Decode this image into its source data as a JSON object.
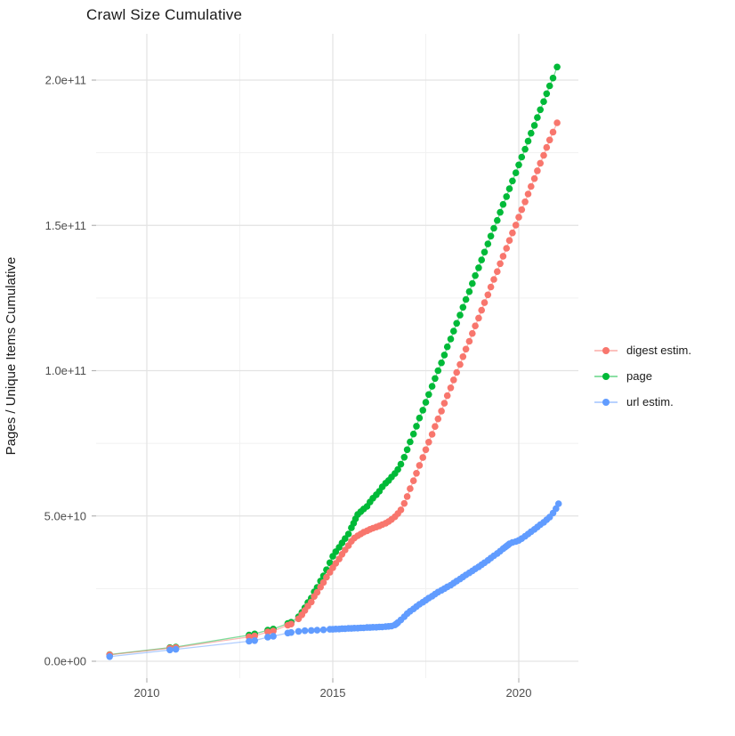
{
  "title": "Crawl Size Cumulative",
  "y_axis_title": "Pages / Unique Items Cumulative",
  "legend": {
    "position": "right",
    "items": [
      {
        "label": "digest estim.",
        "color": "#F8766D"
      },
      {
        "label": "page",
        "color": "#00BA38"
      },
      {
        "label": "url estim.",
        "color": "#619CFF"
      }
    ]
  },
  "colors": {
    "background": "#ffffff",
    "grid_major": "#e3e3e3",
    "grid_minor": "#f1f1f1",
    "tick_mark": "#b3b3b3",
    "axis_text": "#4d4d4d",
    "title_text": "#1a1a1a"
  },
  "chart_data": {
    "type": "scatter",
    "title": "Crawl Size Cumulative",
    "xlabel": "",
    "ylabel": "Pages / Unique Items Cumulative",
    "value_unit": "items, value stored in units of 1e9 (giga)",
    "x_ticks": [
      {
        "label": "2010",
        "year": 2010
      },
      {
        "label": "2015",
        "year": 2015
      },
      {
        "label": "2020",
        "year": 2020
      }
    ],
    "y_ticks": [
      {
        "label": "0.0e+00",
        "value_e9": 0
      },
      {
        "label": "5.0e+10",
        "value_e9": 50
      },
      {
        "label": "1.0e+11",
        "value_e9": 100
      },
      {
        "label": "1.5e+11",
        "value_e9": 150
      },
      {
        "label": "2.0e+11",
        "value_e9": 200
      }
    ],
    "x_minor_ticks_years": [
      2012.5,
      2017.5
    ],
    "y_minor_ticks_e9": [
      25,
      75,
      125,
      175
    ],
    "x_range_years": [
      2008.64,
      2021.6
    ],
    "y_range_e9": [
      -5.8,
      216
    ],
    "grid": "major+minor",
    "legend_position": "right",
    "draw_order": [
      1,
      0,
      2
    ],
    "series": [
      {
        "name": "digest estim.",
        "color": "#F8766D",
        "points": [
          [
            2009.0,
            2.2
          ],
          [
            2010.62,
            4.5
          ],
          [
            2010.78,
            4.7
          ],
          [
            2012.75,
            8.4
          ],
          [
            2012.9,
            8.7
          ],
          [
            2013.25,
            10.1
          ],
          [
            2013.4,
            10.4
          ],
          [
            2013.79,
            12.4
          ],
          [
            2013.88,
            12.8
          ],
          [
            2014.08,
            14.6
          ],
          [
            2014.17,
            16.0
          ],
          [
            2014.25,
            17.5
          ],
          [
            2014.33,
            19.0
          ],
          [
            2014.42,
            20.4
          ],
          [
            2014.5,
            22.3
          ],
          [
            2014.58,
            23.7
          ],
          [
            2014.67,
            25.5
          ],
          [
            2014.75,
            27.1
          ],
          [
            2014.83,
            28.9
          ],
          [
            2014.92,
            30.6
          ],
          [
            2015.0,
            32.2
          ],
          [
            2015.08,
            33.7
          ],
          [
            2015.17,
            35.2
          ],
          [
            2015.25,
            36.8
          ],
          [
            2015.33,
            38.3
          ],
          [
            2015.42,
            39.8
          ],
          [
            2015.5,
            41.3
          ],
          [
            2015.58,
            42.4
          ],
          [
            2015.67,
            43.2
          ],
          [
            2015.75,
            43.8
          ],
          [
            2015.83,
            44.4
          ],
          [
            2015.92,
            44.9
          ],
          [
            2016.0,
            45.4
          ],
          [
            2016.08,
            45.8
          ],
          [
            2016.17,
            46.2
          ],
          [
            2016.25,
            46.6
          ],
          [
            2016.33,
            47.0
          ],
          [
            2016.42,
            47.5
          ],
          [
            2016.5,
            48.1
          ],
          [
            2016.58,
            48.8
          ],
          [
            2016.67,
            49.7
          ],
          [
            2016.75,
            50.8
          ],
          [
            2016.83,
            52.1
          ],
          [
            2016.92,
            54.3
          ],
          [
            2017.0,
            56.7
          ],
          [
            2017.08,
            59.4
          ],
          [
            2017.17,
            62.1
          ],
          [
            2017.25,
            64.7
          ],
          [
            2017.33,
            67.4
          ],
          [
            2017.42,
            70.1
          ],
          [
            2017.5,
            72.8
          ],
          [
            2017.58,
            75.4
          ],
          [
            2017.67,
            78.1
          ],
          [
            2017.75,
            80.8
          ],
          [
            2017.83,
            83.4
          ],
          [
            2017.92,
            86.1
          ],
          [
            2018.0,
            88.8
          ],
          [
            2018.08,
            91.4
          ],
          [
            2018.17,
            94.1
          ],
          [
            2018.25,
            96.8
          ],
          [
            2018.33,
            99.4
          ],
          [
            2018.42,
            102.1
          ],
          [
            2018.5,
            104.8
          ],
          [
            2018.58,
            107.4
          ],
          [
            2018.67,
            110.1
          ],
          [
            2018.75,
            112.8
          ],
          [
            2018.83,
            115.4
          ],
          [
            2018.92,
            118.1
          ],
          [
            2019.0,
            120.8
          ],
          [
            2019.08,
            123.4
          ],
          [
            2019.17,
            126.1
          ],
          [
            2019.25,
            128.8
          ],
          [
            2019.33,
            131.4
          ],
          [
            2019.42,
            134.1
          ],
          [
            2019.5,
            136.8
          ],
          [
            2019.58,
            139.4
          ],
          [
            2019.67,
            142.1
          ],
          [
            2019.75,
            144.8
          ],
          [
            2019.83,
            147.4
          ],
          [
            2019.92,
            150.1
          ],
          [
            2020.0,
            152.8
          ],
          [
            2020.08,
            155.4
          ],
          [
            2020.17,
            158.1
          ],
          [
            2020.25,
            160.8
          ],
          [
            2020.33,
            163.4
          ],
          [
            2020.42,
            166.1
          ],
          [
            2020.5,
            168.8
          ],
          [
            2020.58,
            171.4
          ],
          [
            2020.67,
            174.1
          ],
          [
            2020.75,
            176.8
          ],
          [
            2020.83,
            179.4
          ],
          [
            2020.92,
            182.1
          ],
          [
            2021.03,
            185.3
          ]
        ]
      },
      {
        "name": "page",
        "color": "#00BA38",
        "points": [
          [
            2009.0,
            2.3
          ],
          [
            2010.62,
            4.7
          ],
          [
            2010.78,
            4.9
          ],
          [
            2012.75,
            9.0
          ],
          [
            2012.9,
            9.4
          ],
          [
            2013.25,
            10.7
          ],
          [
            2013.4,
            11.1
          ],
          [
            2013.79,
            13.0
          ],
          [
            2013.88,
            13.4
          ],
          [
            2014.08,
            15.3
          ],
          [
            2014.17,
            16.8
          ],
          [
            2014.25,
            18.4
          ],
          [
            2014.33,
            20.2
          ],
          [
            2014.42,
            21.7
          ],
          [
            2014.5,
            23.9
          ],
          [
            2014.58,
            25.4
          ],
          [
            2014.67,
            27.6
          ],
          [
            2014.75,
            29.4
          ],
          [
            2014.83,
            31.5
          ],
          [
            2014.92,
            33.9
          ],
          [
            2015.0,
            36.1
          ],
          [
            2015.08,
            37.7
          ],
          [
            2015.17,
            39.2
          ],
          [
            2015.25,
            40.7
          ],
          [
            2015.33,
            42.2
          ],
          [
            2015.42,
            43.8
          ],
          [
            2015.5,
            45.9
          ],
          [
            2015.56,
            47.5
          ],
          [
            2015.61,
            49.0
          ],
          [
            2015.67,
            50.5
          ],
          [
            2015.75,
            51.5
          ],
          [
            2015.83,
            52.4
          ],
          [
            2015.92,
            53.3
          ],
          [
            2016.0,
            54.8
          ],
          [
            2016.08,
            56.1
          ],
          [
            2016.17,
            57.3
          ],
          [
            2016.25,
            58.5
          ],
          [
            2016.33,
            60.0
          ],
          [
            2016.42,
            61.3
          ],
          [
            2016.5,
            62.2
          ],
          [
            2016.58,
            63.4
          ],
          [
            2016.67,
            64.6
          ],
          [
            2016.75,
            66.0
          ],
          [
            2016.83,
            67.8
          ],
          [
            2016.92,
            70.2
          ],
          [
            2017.0,
            72.8
          ],
          [
            2017.08,
            75.5
          ],
          [
            2017.17,
            78.2
          ],
          [
            2017.25,
            80.9
          ],
          [
            2017.33,
            83.7
          ],
          [
            2017.42,
            86.4
          ],
          [
            2017.5,
            89.1
          ],
          [
            2017.58,
            91.8
          ],
          [
            2017.67,
            94.6
          ],
          [
            2017.75,
            97.3
          ],
          [
            2017.83,
            100.0
          ],
          [
            2017.92,
            102.7
          ],
          [
            2018.0,
            105.4
          ],
          [
            2018.08,
            108.2
          ],
          [
            2018.17,
            110.9
          ],
          [
            2018.25,
            113.6
          ],
          [
            2018.33,
            116.3
          ],
          [
            2018.42,
            119.1
          ],
          [
            2018.5,
            121.8
          ],
          [
            2018.58,
            124.5
          ],
          [
            2018.67,
            127.2
          ],
          [
            2018.75,
            130.0
          ],
          [
            2018.83,
            132.7
          ],
          [
            2018.92,
            135.4
          ],
          [
            2019.0,
            138.1
          ],
          [
            2019.08,
            140.8
          ],
          [
            2019.17,
            143.6
          ],
          [
            2019.25,
            146.3
          ],
          [
            2019.33,
            149.0
          ],
          [
            2019.42,
            151.7
          ],
          [
            2019.5,
            154.5
          ],
          [
            2019.58,
            157.2
          ],
          [
            2019.67,
            159.9
          ],
          [
            2019.75,
            162.6
          ],
          [
            2019.83,
            165.3
          ],
          [
            2019.92,
            168.1
          ],
          [
            2020.0,
            170.8
          ],
          [
            2020.08,
            173.5
          ],
          [
            2020.17,
            176.2
          ],
          [
            2020.25,
            179.0
          ],
          [
            2020.33,
            181.7
          ],
          [
            2020.42,
            184.4
          ],
          [
            2020.5,
            187.1
          ],
          [
            2020.58,
            189.8
          ],
          [
            2020.67,
            192.6
          ],
          [
            2020.75,
            195.3
          ],
          [
            2020.83,
            198.0
          ],
          [
            2020.92,
            200.7
          ],
          [
            2021.03,
            204.5
          ]
        ]
      },
      {
        "name": "url estim.",
        "color": "#619CFF",
        "points": [
          [
            2009.0,
            1.6
          ],
          [
            2010.62,
            3.9
          ],
          [
            2010.78,
            4.1
          ],
          [
            2012.75,
            6.9
          ],
          [
            2012.9,
            7.1
          ],
          [
            2013.25,
            8.3
          ],
          [
            2013.4,
            8.6
          ],
          [
            2013.79,
            9.7
          ],
          [
            2013.88,
            9.9
          ],
          [
            2014.08,
            10.3
          ],
          [
            2014.25,
            10.5
          ],
          [
            2014.42,
            10.6
          ],
          [
            2014.58,
            10.7
          ],
          [
            2014.75,
            10.8
          ],
          [
            2014.92,
            11.0
          ],
          [
            2015.0,
            11.0
          ],
          [
            2015.08,
            11.1
          ],
          [
            2015.17,
            11.1
          ],
          [
            2015.25,
            11.2
          ],
          [
            2015.33,
            11.2
          ],
          [
            2015.42,
            11.3
          ],
          [
            2015.5,
            11.3
          ],
          [
            2015.58,
            11.4
          ],
          [
            2015.67,
            11.4
          ],
          [
            2015.75,
            11.5
          ],
          [
            2015.83,
            11.5
          ],
          [
            2015.92,
            11.6
          ],
          [
            2016.0,
            11.6
          ],
          [
            2016.08,
            11.7
          ],
          [
            2016.17,
            11.7
          ],
          [
            2016.25,
            11.8
          ],
          [
            2016.33,
            11.8
          ],
          [
            2016.42,
            11.9
          ],
          [
            2016.5,
            12.0
          ],
          [
            2016.58,
            12.1
          ],
          [
            2016.67,
            12.5
          ],
          [
            2016.71,
            12.9
          ],
          [
            2016.75,
            13.3
          ],
          [
            2016.83,
            14.2
          ],
          [
            2016.92,
            15.3
          ],
          [
            2017.0,
            16.4
          ],
          [
            2017.08,
            17.2
          ],
          [
            2017.17,
            18.0
          ],
          [
            2017.25,
            18.8
          ],
          [
            2017.33,
            19.6
          ],
          [
            2017.42,
            20.3
          ],
          [
            2017.5,
            21.0
          ],
          [
            2017.58,
            21.7
          ],
          [
            2017.67,
            22.4
          ],
          [
            2017.75,
            23.1
          ],
          [
            2017.83,
            23.8
          ],
          [
            2017.92,
            24.4
          ],
          [
            2018.0,
            25.0
          ],
          [
            2018.08,
            25.6
          ],
          [
            2018.17,
            26.2
          ],
          [
            2018.25,
            26.9
          ],
          [
            2018.33,
            27.6
          ],
          [
            2018.42,
            28.3
          ],
          [
            2018.5,
            29.0
          ],
          [
            2018.58,
            29.7
          ],
          [
            2018.67,
            30.4
          ],
          [
            2018.75,
            31.1
          ],
          [
            2018.83,
            31.8
          ],
          [
            2018.92,
            32.5
          ],
          [
            2019.0,
            33.2
          ],
          [
            2019.08,
            33.9
          ],
          [
            2019.17,
            34.7
          ],
          [
            2019.25,
            35.5
          ],
          [
            2019.33,
            36.3
          ],
          [
            2019.42,
            37.1
          ],
          [
            2019.5,
            37.9
          ],
          [
            2019.58,
            38.7
          ],
          [
            2019.63,
            39.2
          ],
          [
            2019.67,
            39.6
          ],
          [
            2019.71,
            40.0
          ],
          [
            2019.75,
            40.4
          ],
          [
            2019.83,
            40.9
          ],
          [
            2019.92,
            41.2
          ],
          [
            2020.0,
            41.6
          ],
          [
            2020.08,
            42.2
          ],
          [
            2020.17,
            43.0
          ],
          [
            2020.25,
            43.8
          ],
          [
            2020.33,
            44.6
          ],
          [
            2020.42,
            45.4
          ],
          [
            2020.5,
            46.2
          ],
          [
            2020.58,
            47.0
          ],
          [
            2020.67,
            47.8
          ],
          [
            2020.75,
            48.7
          ],
          [
            2020.83,
            49.6
          ],
          [
            2020.92,
            51.0
          ],
          [
            2021.0,
            52.5
          ],
          [
            2021.07,
            54.2
          ]
        ]
      }
    ]
  }
}
